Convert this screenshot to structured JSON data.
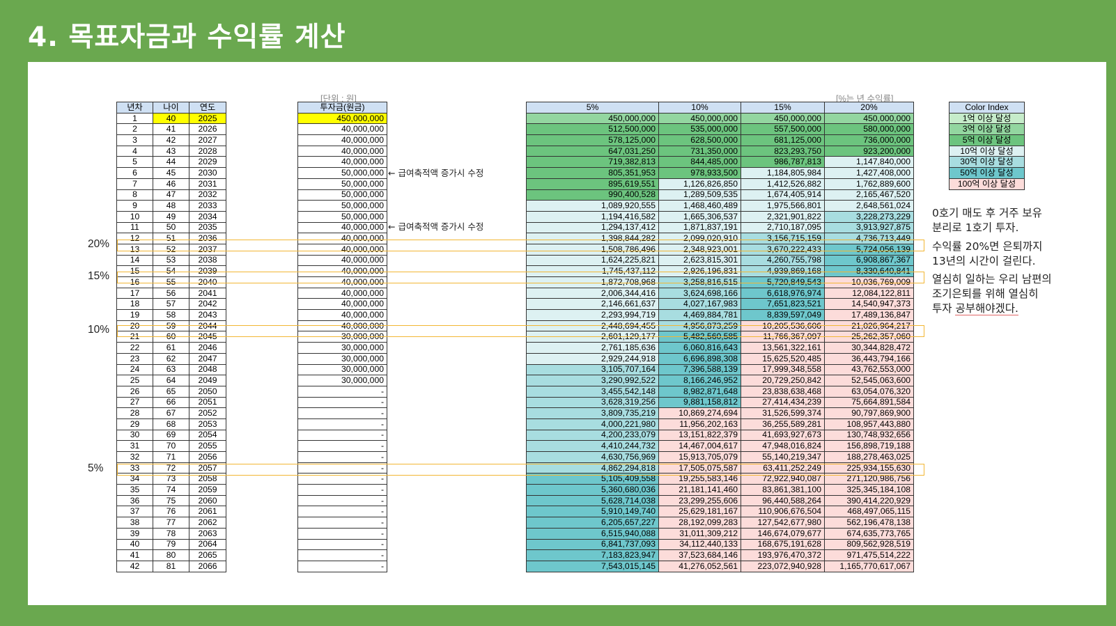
{
  "title": "4. 목표자금과 수익률 계산",
  "unit_caption": "[단위 : 원]",
  "rate_caption": "[%는 년 수익률]",
  "left_headers": [
    "년차",
    "나이",
    "연도"
  ],
  "invest_header": "투자금(원금)",
  "rate_headers": [
    "5%",
    "10%",
    "15%",
    "20%"
  ],
  "notes": [
    {
      "row": 5,
      "text": "← 급여축적액 증가시 수정"
    },
    {
      "row": 10,
      "text": "← 급여축적액 증가시 수정"
    }
  ],
  "legend": {
    "title": "Color Index",
    "items": [
      {
        "label": "1억 이상 달성",
        "color": "#c6ecca"
      },
      {
        "label": "3억 이상 달성",
        "color": "#93d6a0"
      },
      {
        "label": "5억 이상 달성",
        "color": "#6cc47e"
      },
      {
        "label": "10억 이상 달성",
        "color": "#ddf1f2"
      },
      {
        "label": "30억 이상 달성",
        "color": "#a8dde0"
      },
      {
        "label": "50억 이상 달성",
        "color": "#6ec7cc"
      },
      {
        "label": "100억 이상 달성",
        "color": "#fcdcda"
      }
    ]
  },
  "rows": [
    [
      "1",
      "40",
      "2025",
      "450,000,000",
      "450,000,000",
      "450,000,000",
      "450,000,000",
      "450,000,000"
    ],
    [
      "2",
      "41",
      "2026",
      "40,000,000",
      "512,500,000",
      "535,000,000",
      "557,500,000",
      "580,000,000"
    ],
    [
      "3",
      "42",
      "2027",
      "40,000,000",
      "578,125,000",
      "628,500,000",
      "681,125,000",
      "736,000,000"
    ],
    [
      "4",
      "43",
      "2028",
      "40,000,000",
      "647,031,250",
      "731,350,000",
      "823,293,750",
      "923,200,000"
    ],
    [
      "5",
      "44",
      "2029",
      "40,000,000",
      "719,382,813",
      "844,485,000",
      "986,787,813",
      "1,147,840,000"
    ],
    [
      "6",
      "45",
      "2030",
      "50,000,000",
      "805,351,953",
      "978,933,500",
      "1,184,805,984",
      "1,427,408,000"
    ],
    [
      "7",
      "46",
      "2031",
      "50,000,000",
      "895,619,551",
      "1,126,826,850",
      "1,412,526,882",
      "1,762,889,600"
    ],
    [
      "8",
      "47",
      "2032",
      "50,000,000",
      "990,400,528",
      "1,289,509,535",
      "1,674,405,914",
      "2,165,467,520"
    ],
    [
      "9",
      "48",
      "2033",
      "50,000,000",
      "1,089,920,555",
      "1,468,460,489",
      "1,975,566,801",
      "2,648,561,024"
    ],
    [
      "10",
      "49",
      "2034",
      "50,000,000",
      "1,194,416,582",
      "1,665,306,537",
      "2,321,901,822",
      "3,228,273,229"
    ],
    [
      "11",
      "50",
      "2035",
      "40,000,000",
      "1,294,137,412",
      "1,871,837,191",
      "2,710,187,095",
      "3,913,927,875"
    ],
    [
      "12",
      "51",
      "2036",
      "40,000,000",
      "1,398,844,282",
      "2,099,020,910",
      "3,156,715,159",
      "4,736,713,449"
    ],
    [
      "13",
      "52",
      "2037",
      "40,000,000",
      "1,508,786,496",
      "2,348,923,001",
      "3,670,222,433",
      "5,724,056,139"
    ],
    [
      "14",
      "53",
      "2038",
      "40,000,000",
      "1,624,225,821",
      "2,623,815,301",
      "4,260,755,798",
      "6,908,867,367"
    ],
    [
      "15",
      "54",
      "2039",
      "40,000,000",
      "1,745,437,112",
      "2,926,196,831",
      "4,939,869,168",
      "8,330,640,841"
    ],
    [
      "16",
      "55",
      "2040",
      "40,000,000",
      "1,872,708,968",
      "3,258,816,515",
      "5,720,849,543",
      "10,036,769,009"
    ],
    [
      "17",
      "56",
      "2041",
      "40,000,000",
      "2,006,344,416",
      "3,624,698,166",
      "6,618,976,974",
      "12,084,122,811"
    ],
    [
      "18",
      "57",
      "2042",
      "40,000,000",
      "2,146,661,637",
      "4,027,167,983",
      "7,651,823,521",
      "14,540,947,373"
    ],
    [
      "19",
      "58",
      "2043",
      "40,000,000",
      "2,293,994,719",
      "4,469,884,781",
      "8,839,597,049",
      "17,489,136,847"
    ],
    [
      "20",
      "59",
      "2044",
      "40,000,000",
      "2,448,694,455",
      "4,956,873,259",
      "10,205,536,606",
      "21,026,964,217"
    ],
    [
      "21",
      "60",
      "2045",
      "30,000,000",
      "2,601,129,177",
      "5,482,560,585",
      "11,766,367,097",
      "25,262,357,060"
    ],
    [
      "22",
      "61",
      "2046",
      "30,000,000",
      "2,761,185,636",
      "6,060,816,643",
      "13,561,322,161",
      "30,344,828,472"
    ],
    [
      "23",
      "62",
      "2047",
      "30,000,000",
      "2,929,244,918",
      "6,696,898,308",
      "15,625,520,485",
      "36,443,794,166"
    ],
    [
      "24",
      "63",
      "2048",
      "30,000,000",
      "3,105,707,164",
      "7,396,588,139",
      "17,999,348,558",
      "43,762,553,000"
    ],
    [
      "25",
      "64",
      "2049",
      "30,000,000",
      "3,290,992,522",
      "8,166,246,952",
      "20,729,250,842",
      "52,545,063,600"
    ],
    [
      "26",
      "65",
      "2050",
      "-",
      "3,455,542,148",
      "8,982,871,648",
      "23,838,638,468",
      "63,054,076,320"
    ],
    [
      "27",
      "66",
      "2051",
      "-",
      "3,628,319,256",
      "9,881,158,812",
      "27,414,434,239",
      "75,664,891,584"
    ],
    [
      "28",
      "67",
      "2052",
      "-",
      "3,809,735,219",
      "10,869,274,694",
      "31,526,599,374",
      "90,797,869,900"
    ],
    [
      "29",
      "68",
      "2053",
      "-",
      "4,000,221,980",
      "11,956,202,163",
      "36,255,589,281",
      "108,957,443,880"
    ],
    [
      "30",
      "69",
      "2054",
      "-",
      "4,200,233,079",
      "13,151,822,379",
      "41,693,927,673",
      "130,748,932,656"
    ],
    [
      "31",
      "70",
      "2055",
      "-",
      "4,410,244,732",
      "14,467,004,617",
      "47,948,016,824",
      "156,898,719,188"
    ],
    [
      "32",
      "71",
      "2056",
      "-",
      "4,630,756,969",
      "15,913,705,079",
      "55,140,219,347",
      "188,278,463,025"
    ],
    [
      "33",
      "72",
      "2057",
      "-",
      "4,862,294,818",
      "17,505,075,587",
      "63,411,252,249",
      "225,934,155,630"
    ],
    [
      "34",
      "73",
      "2058",
      "-",
      "5,105,409,558",
      "19,255,583,146",
      "72,922,940,087",
      "271,120,986,756"
    ],
    [
      "35",
      "74",
      "2059",
      "-",
      "5,360,680,036",
      "21,181,141,460",
      "83,861,381,100",
      "325,345,184,108"
    ],
    [
      "36",
      "75",
      "2060",
      "-",
      "5,628,714,038",
      "23,299,255,606",
      "96,440,588,264",
      "390,414,220,929"
    ],
    [
      "37",
      "76",
      "2061",
      "-",
      "5,910,149,740",
      "25,629,181,167",
      "110,906,676,504",
      "468,497,065,115"
    ],
    [
      "38",
      "77",
      "2062",
      "-",
      "6,205,657,227",
      "28,192,099,283",
      "127,542,677,980",
      "562,196,478,138"
    ],
    [
      "39",
      "78",
      "2063",
      "-",
      "6,515,940,088",
      "31,011,309,212",
      "146,674,079,677",
      "674,635,773,765"
    ],
    [
      "40",
      "79",
      "2064",
      "-",
      "6,841,737,093",
      "34,112,440,133",
      "168,675,191,628",
      "809,562,928,519"
    ],
    [
      "41",
      "80",
      "2065",
      "-",
      "7,183,823,947",
      "37,523,684,146",
      "193,976,470,372",
      "971,475,514,222"
    ],
    [
      "42",
      "81",
      "2066",
      "-",
      "7,543,015,145",
      "41,276,052,561",
      "223,072,940,928",
      "1,165,770,617,067"
    ]
  ],
  "highlights": [
    {
      "row": 12,
      "label": "20%"
    },
    {
      "row": 15,
      "label": "15%"
    },
    {
      "row": 20,
      "label": "10%"
    },
    {
      "row": 33,
      "label": "5%"
    }
  ],
  "comment": {
    "p1_l1": "0호기 매도 후 거주 보유",
    "p1_l2": "분리로 1호기 투자.",
    "p2_l1": "수익률 20%면 은퇴까지",
    "p2_l2": "13년의 시간이 걸린다.",
    "p3_l1": "열심히 일하는 우리 남편의",
    "p3_l2": "조기은퇴를 위해 열심히",
    "p3_l3a": "투자 ",
    "p3_l3b": "공부해야겠다."
  }
}
